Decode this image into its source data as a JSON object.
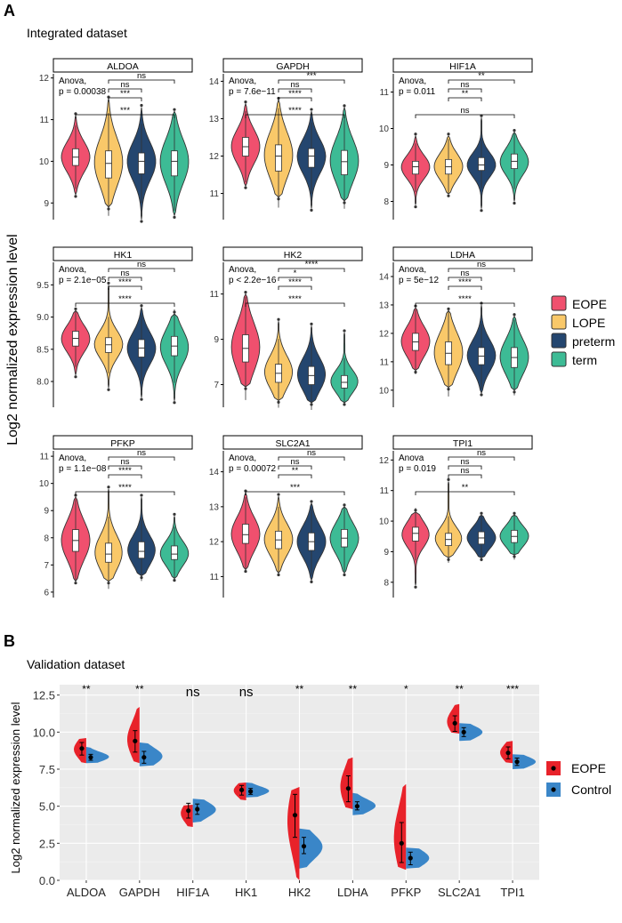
{
  "panel_a": {
    "label": "A",
    "title": "Integrated dataset",
    "ylabel": "Log2 normalized expression level",
    "legend": [
      {
        "name": "EOPE",
        "color": "#F0506E"
      },
      {
        "name": "LOPE",
        "color": "#F9C869"
      },
      {
        "name": "preterm",
        "color": "#24466F"
      },
      {
        "name": "term",
        "color": "#3DBB95"
      }
    ]
  },
  "panel_b": {
    "label": "B",
    "title": "Validation dataset",
    "ylabel": "Log2 normalized expression level",
    "legend": [
      {
        "name": "EOPE",
        "color": "#E8222A"
      },
      {
        "name": "Control",
        "color": "#3A86C8"
      }
    ]
  },
  "chart_data": [
    {
      "type": "violin",
      "title": "ALDOA",
      "ylim": [
        8.6,
        12.1
      ],
      "yticks": [
        9,
        10,
        11,
        12
      ],
      "anova": [
        "Anova,",
        "p = 0.00038"
      ],
      "groups": [
        {
          "name": "EOPE",
          "median": 10.1,
          "q1": 9.9,
          "q3": 10.3,
          "min": 9.2,
          "max": 11.1
        },
        {
          "name": "LOPE",
          "median": 9.95,
          "q1": 9.6,
          "q3": 10.25,
          "min": 8.9,
          "max": 11.5
        },
        {
          "name": "preterm",
          "median": 10.0,
          "q1": 9.7,
          "q3": 10.2,
          "min": 8.6,
          "max": 11.3
        },
        {
          "name": "term",
          "median": 10.0,
          "q1": 9.65,
          "q3": 10.25,
          "min": 8.7,
          "max": 11.2
        }
      ],
      "comparisons": [
        {
          "to": "LOPE",
          "label": "ns"
        },
        {
          "to": "preterm",
          "label": "***"
        },
        {
          "to": "term",
          "label": "***"
        },
        {
          "to": "EOPE-term",
          "label": "ns"
        }
      ]
    },
    {
      "type": "violin",
      "title": "GAPDH",
      "ylim": [
        10.3,
        14.2
      ],
      "yticks": [
        11,
        12,
        13,
        14
      ],
      "anova": [
        "Anova,",
        "p = 7.6e−11"
      ],
      "groups": [
        {
          "name": "EOPE",
          "median": 12.25,
          "q1": 12.0,
          "q3": 12.5,
          "min": 11.2,
          "max": 13.4
        },
        {
          "name": "LOPE",
          "median": 12.0,
          "q1": 11.6,
          "q3": 12.3,
          "min": 10.9,
          "max": 13.5
        },
        {
          "name": "preterm",
          "median": 12.0,
          "q1": 11.7,
          "q3": 12.2,
          "min": 10.6,
          "max": 13.2
        },
        {
          "name": "term",
          "median": 11.85,
          "q1": 11.5,
          "q3": 12.15,
          "min": 10.8,
          "max": 13.3
        }
      ],
      "comparisons": [
        {
          "to": "LOPE",
          "label": "ns"
        },
        {
          "to": "preterm",
          "label": "****"
        },
        {
          "to": "term",
          "label": "****"
        },
        {
          "to": "EOPE-term",
          "label": "***"
        }
      ]
    },
    {
      "type": "violin",
      "title": "HIF1A",
      "ylim": [
        7.5,
        11.5
      ],
      "yticks": [
        8,
        9,
        10,
        11
      ],
      "anova": [
        "Anova,",
        "p = 0.011"
      ],
      "groups": [
        {
          "name": "EOPE",
          "median": 8.95,
          "q1": 8.75,
          "q3": 9.1,
          "min": 7.9,
          "max": 9.8
        },
        {
          "name": "LOPE",
          "median": 8.95,
          "q1": 8.75,
          "q3": 9.15,
          "min": 8.2,
          "max": 9.8
        },
        {
          "name": "preterm",
          "median": 9.0,
          "q1": 8.85,
          "q3": 9.2,
          "min": 7.8,
          "max": 10.3
        },
        {
          "name": "term",
          "median": 9.1,
          "q1": 8.9,
          "q3": 9.3,
          "min": 8.0,
          "max": 9.9
        }
      ],
      "comparisons": [
        {
          "to": "LOPE",
          "label": "ns"
        },
        {
          "to": "preterm",
          "label": "**"
        },
        {
          "to": "term",
          "label": "ns"
        },
        {
          "to": "EOPE-term",
          "label": "**"
        }
      ]
    },
    {
      "type": "violin",
      "title": "HK1",
      "ylim": [
        7.6,
        9.85
      ],
      "yticks": [
        8.0,
        8.5,
        9.0,
        9.5
      ],
      "anova": [
        "Anova,",
        "p = 2.1e−05"
      ],
      "groups": [
        {
          "name": "EOPE",
          "median": 8.67,
          "q1": 8.55,
          "q3": 8.78,
          "min": 8.1,
          "max": 9.1
        },
        {
          "name": "LOPE",
          "median": 8.57,
          "q1": 8.45,
          "q3": 8.68,
          "min": 7.9,
          "max": 9.5
        },
        {
          "name": "preterm",
          "median": 8.52,
          "q1": 8.38,
          "q3": 8.65,
          "min": 7.75,
          "max": 9.15
        },
        {
          "name": "term",
          "median": 8.55,
          "q1": 8.4,
          "q3": 8.7,
          "min": 7.7,
          "max": 9.05
        }
      ],
      "comparisons": [
        {
          "to": "LOPE",
          "label": "ns"
        },
        {
          "to": "preterm",
          "label": "****"
        },
        {
          "to": "term",
          "label": "****"
        },
        {
          "to": "EOPE-term",
          "label": "ns"
        }
      ]
    },
    {
      "type": "violin",
      "title": "HK2",
      "ylim": [
        6.0,
        12.4
      ],
      "yticks": [
        7,
        9,
        11
      ],
      "anova": [
        "Anova,",
        "p < 2.2e−16"
      ],
      "groups": [
        {
          "name": "EOPE",
          "median": 8.6,
          "q1": 8.0,
          "q3": 9.2,
          "min": 6.9,
          "max": 11.0
        },
        {
          "name": "LOPE",
          "median": 7.5,
          "q1": 7.1,
          "q3": 7.9,
          "min": 6.3,
          "max": 9.8
        },
        {
          "name": "preterm",
          "median": 7.4,
          "q1": 7.0,
          "q3": 7.8,
          "min": 6.2,
          "max": 9.6
        },
        {
          "name": "term",
          "median": 7.1,
          "q1": 6.85,
          "q3": 7.4,
          "min": 6.2,
          "max": 9.3
        }
      ],
      "comparisons": [
        {
          "to": "LOPE",
          "label": "*"
        },
        {
          "to": "preterm",
          "label": "****"
        },
        {
          "to": "term",
          "label": "****"
        },
        {
          "to": "EOPE-term",
          "label": "****"
        }
      ]
    },
    {
      "type": "violin",
      "title": "LDHA",
      "ylim": [
        9.4,
        14.5
      ],
      "yticks": [
        10,
        11,
        12,
        13,
        14
      ],
      "anova": [
        "Anova,",
        "p = 5e−12"
      ],
      "groups": [
        {
          "name": "EOPE",
          "median": 11.7,
          "q1": 11.4,
          "q3": 12.0,
          "min": 10.7,
          "max": 12.9
        },
        {
          "name": "LOPE",
          "median": 11.3,
          "q1": 10.9,
          "q3": 11.7,
          "min": 10.1,
          "max": 12.8
        },
        {
          "name": "preterm",
          "median": 11.2,
          "q1": 10.9,
          "q3": 11.5,
          "min": 9.9,
          "max": 13.0
        },
        {
          "name": "term",
          "median": 11.15,
          "q1": 10.8,
          "q3": 11.5,
          "min": 10.0,
          "max": 12.6
        }
      ],
      "comparisons": [
        {
          "to": "LOPE",
          "label": "ns"
        },
        {
          "to": "preterm",
          "label": "****"
        },
        {
          "to": "term",
          "label": "****"
        },
        {
          "to": "EOPE-term",
          "label": "ns"
        }
      ]
    },
    {
      "type": "violin",
      "title": "PFKP",
      "ylim": [
        5.8,
        11.2
      ],
      "yticks": [
        6,
        7,
        8,
        9,
        10,
        11
      ],
      "anova": [
        "Anova,",
        "p = 1.1e−08"
      ],
      "groups": [
        {
          "name": "EOPE",
          "median": 7.9,
          "q1": 7.5,
          "q3": 8.3,
          "min": 6.4,
          "max": 9.5
        },
        {
          "name": "LOPE",
          "median": 7.4,
          "q1": 7.1,
          "q3": 7.8,
          "min": 6.4,
          "max": 9.8
        },
        {
          "name": "preterm",
          "median": 7.5,
          "q1": 7.25,
          "q3": 7.85,
          "min": 6.6,
          "max": 9.5
        },
        {
          "name": "term",
          "median": 7.4,
          "q1": 7.2,
          "q3": 7.7,
          "min": 6.5,
          "max": 8.8
        }
      ],
      "comparisons": [
        {
          "to": "LOPE",
          "label": "ns"
        },
        {
          "to": "preterm",
          "label": "****"
        },
        {
          "to": "term",
          "label": "****"
        },
        {
          "to": "EOPE-term",
          "label": "ns"
        }
      ]
    },
    {
      "type": "violin",
      "title": "SLC2A1",
      "ylim": [
        10.4,
        14.6
      ],
      "yticks": [
        11,
        12,
        13,
        14
      ],
      "anova": [
        "Anova,",
        "p = 0.00072"
      ],
      "groups": [
        {
          "name": "EOPE",
          "median": 12.2,
          "q1": 11.95,
          "q3": 12.5,
          "min": 11.2,
          "max": 13.4
        },
        {
          "name": "LOPE",
          "median": 12.05,
          "q1": 11.8,
          "q3": 12.3,
          "min": 11.1,
          "max": 13.3
        },
        {
          "name": "preterm",
          "median": 12.0,
          "q1": 11.75,
          "q3": 12.25,
          "min": 10.9,
          "max": 13.1
        },
        {
          "name": "term",
          "median": 12.1,
          "q1": 11.85,
          "q3": 12.35,
          "min": 11.1,
          "max": 13.0
        }
      ],
      "comparisons": [
        {
          "to": "LOPE",
          "label": "ns"
        },
        {
          "to": "preterm",
          "label": "**"
        },
        {
          "to": "term",
          "label": "***"
        },
        {
          "to": "EOPE-term",
          "label": "ns"
        }
      ]
    },
    {
      "type": "violin",
      "title": "TPI1",
      "ylim": [
        7.5,
        12.3
      ],
      "yticks": [
        8,
        9,
        10,
        11,
        12
      ],
      "anova": [
        "Anova",
        "p = 0.019"
      ],
      "groups": [
        {
          "name": "EOPE",
          "median": 9.6,
          "q1": 9.35,
          "q3": 9.8,
          "min": 7.9,
          "max": 10.3
        },
        {
          "name": "LOPE",
          "median": 9.4,
          "q1": 9.2,
          "q3": 9.6,
          "min": 8.8,
          "max": 11.3
        },
        {
          "name": "preterm",
          "median": 9.45,
          "q1": 9.25,
          "q3": 9.65,
          "min": 8.8,
          "max": 10.2
        },
        {
          "name": "term",
          "median": 9.5,
          "q1": 9.3,
          "q3": 9.7,
          "min": 8.9,
          "max": 10.2
        }
      ],
      "comparisons": [
        {
          "to": "LOPE",
          "label": "ns"
        },
        {
          "to": "preterm",
          "label": "ns"
        },
        {
          "to": "term",
          "label": "**"
        },
        {
          "to": "EOPE-term",
          "label": "ns"
        }
      ]
    },
    {
      "type": "split-violin",
      "title": "Validation dataset",
      "categories": [
        "ALDOA",
        "GAPDH",
        "HIF1A",
        "HK1",
        "HK2",
        "LDHA",
        "PFKP",
        "SLC2A1",
        "TPI1"
      ],
      "ylim": [
        0,
        13.2
      ],
      "yticks": [
        0.0,
        2.5,
        5.0,
        7.5,
        10.0,
        12.5
      ],
      "ytick_labels": [
        "0.0",
        "2.5",
        "5.0",
        "7.5",
        "10.0",
        "12.5"
      ],
      "ylabel": "Log2 normalized expression level",
      "significance": [
        "**",
        "**",
        "ns",
        "ns",
        "**",
        "**",
        "*",
        "**",
        "***"
      ],
      "series": [
        {
          "name": "EOPE",
          "mean": [
            8.9,
            9.4,
            4.7,
            6.1,
            4.4,
            6.2,
            2.5,
            10.6,
            8.6
          ],
          "err_low": [
            8.45,
            8.65,
            4.2,
            5.75,
            2.9,
            5.3,
            1.2,
            10.05,
            8.2
          ],
          "err_high": [
            9.3,
            10.1,
            5.2,
            6.4,
            5.8,
            7.05,
            3.9,
            11.1,
            9.0
          ],
          "min": [
            7.9,
            7.9,
            3.6,
            5.4,
            0.0,
            4.8,
            0.7,
            9.9,
            7.9
          ],
          "max": [
            9.6,
            11.7,
            5.1,
            6.6,
            6.3,
            8.3,
            6.5,
            11.9,
            9.4
          ]
        },
        {
          "name": "Control",
          "mean": [
            8.3,
            8.3,
            4.8,
            6.0,
            2.3,
            5.0,
            1.5,
            10.0,
            8.0
          ],
          "err_low": [
            8.1,
            7.9,
            4.45,
            5.8,
            1.8,
            4.75,
            1.05,
            9.7,
            7.75
          ],
          "err_high": [
            8.5,
            8.7,
            5.15,
            6.2,
            2.9,
            5.3,
            1.9,
            10.3,
            8.25
          ],
          "min": [
            7.9,
            7.7,
            3.9,
            5.6,
            0.8,
            4.4,
            0.8,
            9.4,
            7.5
          ],
          "max": [
            9.0,
            9.3,
            5.5,
            6.6,
            3.5,
            5.9,
            2.2,
            10.6,
            8.5
          ]
        }
      ]
    }
  ]
}
